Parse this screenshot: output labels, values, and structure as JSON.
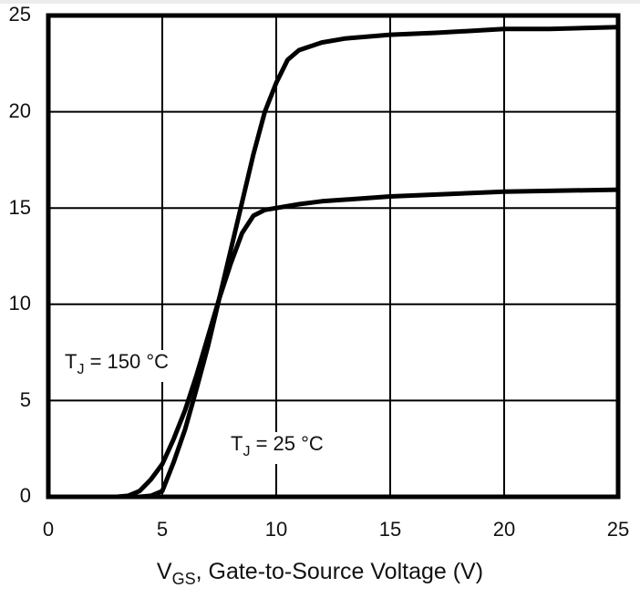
{
  "chart_data": {
    "type": "line",
    "title": "",
    "xlabel": "V_GS, Gate-to-Source Voltage (V)",
    "xlabel_main": "V",
    "xlabel_sub": "GS",
    "xlabel_rest": ", Gate-to-Source Voltage (V)",
    "ylabel": "",
    "xlim": [
      0,
      25
    ],
    "ylim": [
      0,
      25
    ],
    "xticks": [
      "0",
      "5",
      "10",
      "15",
      "20",
      "25"
    ],
    "yticks": [
      "0",
      "5",
      "10",
      "15",
      "20",
      "25"
    ],
    "grid": true,
    "legend": "none (inline annotations)",
    "series": [
      {
        "name": "T_J = 25 °C",
        "x": [
          0,
          3,
          4,
          4.5,
          5,
          5.5,
          6,
          6.5,
          7,
          7.5,
          8,
          8.5,
          9,
          9.5,
          10,
          10.5,
          11,
          12,
          13,
          15,
          17,
          20,
          22,
          25
        ],
        "y": [
          0,
          0,
          0,
          0.05,
          0.3,
          1.8,
          3.5,
          5.6,
          7.8,
          10.3,
          12.8,
          15.3,
          17.8,
          20.0,
          21.5,
          22.7,
          23.2,
          23.6,
          23.8,
          24.0,
          24.1,
          24.3,
          24.3,
          24.4
        ]
      },
      {
        "name": "T_J = 150 °C",
        "x": [
          0,
          3,
          3.5,
          4,
          4.5,
          5,
          5.5,
          6,
          6.5,
          7,
          7.5,
          8,
          8.5,
          9,
          9.5,
          10,
          11,
          12,
          15,
          20,
          25
        ],
        "y": [
          0,
          0,
          0.05,
          0.3,
          0.9,
          1.7,
          3.0,
          4.5,
          6.3,
          8.3,
          10.3,
          12.1,
          13.7,
          14.6,
          14.9,
          15.0,
          15.2,
          15.35,
          15.6,
          15.85,
          15.95
        ]
      }
    ],
    "annotations": [
      {
        "text": "T_J = 150 °C",
        "main": "T",
        "sub": "J",
        "rest": " = 150 °C",
        "x": 2.3,
        "y": 7
      },
      {
        "text": "T_J = 25 °C",
        "main": "T",
        "sub": "J",
        "rest": " = 25 °C",
        "x": 9.0,
        "y": 2.7
      }
    ]
  }
}
